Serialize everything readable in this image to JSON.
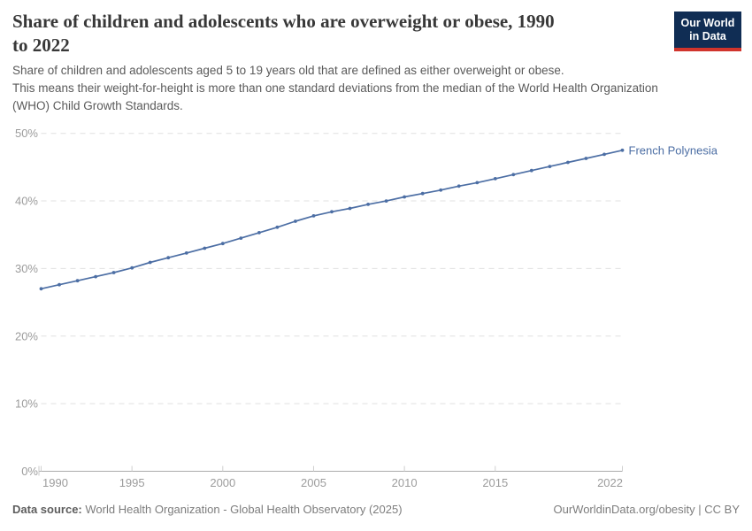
{
  "header": {
    "title_line1": "Share of children and adolescents who are overweight or obese, 1990",
    "title_line2": "to 2022",
    "subtitle_lines": [
      "Share of children and adolescents aged 5 to 19 years old that are defined as either overweight or obese.",
      "This means their weight-for-height is more than one standard deviations from the median of the World Health Organization",
      "(WHO) Child Growth Standards."
    ]
  },
  "logo": {
    "line1": "Our World",
    "line2": "in Data",
    "bg_color": "#102d54",
    "accent_color": "#d0342c",
    "text_color": "#ffffff"
  },
  "chart_data": {
    "type": "line",
    "title": "Share of children and adolescents who are overweight or obese, 1990 to 2022",
    "xlabel": "",
    "ylabel": "",
    "y_format": "percent",
    "grid": true,
    "legend_position": "end-of-line-label",
    "x_range": [
      1990,
      2022
    ],
    "ylim": [
      0,
      50
    ],
    "x_ticks": [
      1990,
      1995,
      2000,
      2005,
      2010,
      2015,
      2022
    ],
    "y_ticks": [
      0,
      10,
      20,
      30,
      40,
      50
    ],
    "x": [
      1990,
      1991,
      1992,
      1993,
      1994,
      1995,
      1996,
      1997,
      1998,
      1999,
      2000,
      2001,
      2002,
      2003,
      2004,
      2005,
      2006,
      2007,
      2008,
      2009,
      2010,
      2011,
      2012,
      2013,
      2014,
      2015,
      2016,
      2017,
      2018,
      2019,
      2020,
      2021,
      2022
    ],
    "series": [
      {
        "name": "French Polynesia",
        "color": "#4c6ea4",
        "values": [
          27.0,
          27.6,
          28.2,
          28.8,
          29.4,
          30.1,
          30.9,
          31.6,
          32.3,
          33.0,
          33.7,
          34.5,
          35.3,
          36.1,
          37.0,
          37.8,
          38.4,
          38.9,
          39.5,
          40.0,
          40.6,
          41.1,
          41.6,
          42.2,
          42.7,
          43.3,
          43.9,
          44.5,
          45.1,
          45.7,
          46.3,
          46.9,
          47.5
        ]
      }
    ]
  },
  "footer": {
    "datasource_label": "Data source:",
    "datasource_text": "World Health Organization - Global Health Observatory (2025)",
    "link_text": "OurWorldinData.org/obesity | CC BY"
  }
}
